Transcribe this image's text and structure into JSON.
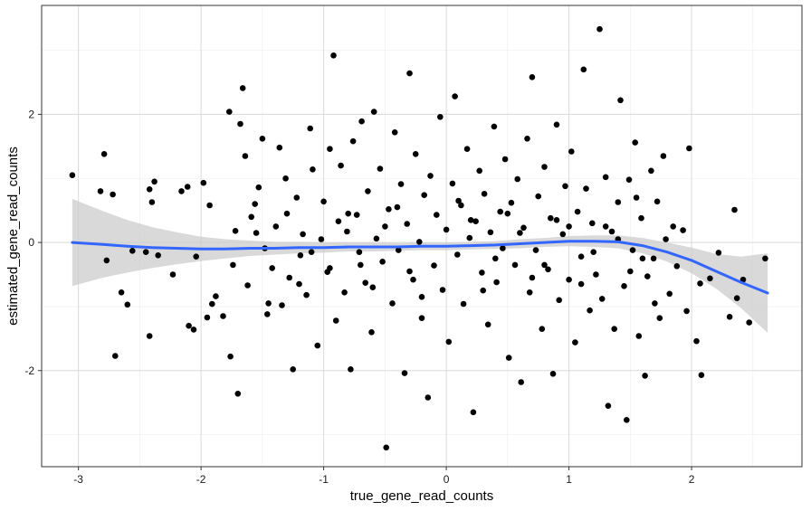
{
  "chart_data": {
    "type": "scatter",
    "title": "",
    "xlabel": "true_gene_read_counts",
    "ylabel": "estimated_gene_read_counts",
    "xlim": [
      -3.3,
      2.9
    ],
    "ylim": [
      -3.5,
      3.7
    ],
    "x_ticks": [
      -3,
      -2,
      -1,
      0,
      1,
      2
    ],
    "y_ticks": [
      -2,
      0,
      2
    ],
    "x_tick_labels": [
      "-3",
      "-2",
      "-1",
      "0",
      "1",
      "2"
    ],
    "y_tick_labels": [
      "-2",
      "0",
      "2"
    ],
    "grid": true,
    "point_color": "#000000",
    "smooth_color": "#3366FF",
    "ribbon_color": "#CCCCCC",
    "points": [
      [
        -3.05,
        1.05
      ],
      [
        -2.82,
        0.8
      ],
      [
        -2.79,
        1.38
      ],
      [
        -2.77,
        -0.28
      ],
      [
        -2.72,
        0.75
      ],
      [
        -2.7,
        -1.77
      ],
      [
        -2.65,
        -0.78
      ],
      [
        -2.6,
        -0.97
      ],
      [
        -2.56,
        -0.13
      ],
      [
        -2.42,
        0.83
      ],
      [
        -2.4,
        0.63
      ],
      [
        -2.42,
        -1.46
      ],
      [
        -2.38,
        0.95
      ],
      [
        -2.35,
        -0.2
      ],
      [
        -2.23,
        -0.5
      ],
      [
        -2.16,
        0.8
      ],
      [
        -2.11,
        0.87
      ],
      [
        -2.1,
        -1.3
      ],
      [
        -2.06,
        -1.36
      ],
      [
        -2.04,
        -0.22
      ],
      [
        -1.98,
        0.93
      ],
      [
        -1.95,
        -1.17
      ],
      [
        -1.93,
        0.58
      ],
      [
        -1.91,
        -0.96
      ],
      [
        -1.88,
        -0.84
      ],
      [
        -1.82,
        -1.15
      ],
      [
        -1.77,
        2.04
      ],
      [
        -1.76,
        -1.78
      ],
      [
        -1.74,
        -0.35
      ],
      [
        -1.72,
        0.18
      ],
      [
        -1.7,
        -2.36
      ],
      [
        -1.68,
        1.85
      ],
      [
        -1.66,
        2.41
      ],
      [
        -1.64,
        1.35
      ],
      [
        -1.62,
        -0.67
      ],
      [
        -1.59,
        0.4
      ],
      [
        -1.56,
        0.6
      ],
      [
        -1.53,
        0.86
      ],
      [
        -1.5,
        1.62
      ],
      [
        -1.48,
        -0.09
      ],
      [
        -1.46,
        -1.12
      ],
      [
        -1.42,
        -0.4
      ],
      [
        -1.39,
        0.25
      ],
      [
        -1.36,
        1.48
      ],
      [
        -1.34,
        -0.98
      ],
      [
        -1.31,
        1.0
      ],
      [
        -1.28,
        -0.55
      ],
      [
        -1.25,
        -1.98
      ],
      [
        -1.22,
        0.7
      ],
      [
        -1.19,
        -0.2
      ],
      [
        -1.17,
        0.13
      ],
      [
        -1.14,
        -0.82
      ],
      [
        -1.11,
        1.78
      ],
      [
        -1.09,
        1.14
      ],
      [
        -1.05,
        -1.61
      ],
      [
        -1.02,
        0.05
      ],
      [
        -1.0,
        0.64
      ],
      [
        -0.97,
        -0.46
      ],
      [
        -0.95,
        1.46
      ],
      [
        -0.92,
        2.92
      ],
      [
        -0.9,
        -1.22
      ],
      [
        -0.88,
        0.33
      ],
      [
        -0.86,
        1.2
      ],
      [
        -0.83,
        -0.78
      ],
      [
        -0.81,
        0.17
      ],
      [
        -0.78,
        -1.98
      ],
      [
        -0.76,
        1.58
      ],
      [
        -0.73,
        0.43
      ],
      [
        -0.71,
        -0.15
      ],
      [
        -0.69,
        1.89
      ],
      [
        -0.66,
        -0.63
      ],
      [
        -0.64,
        0.8
      ],
      [
        -0.61,
        -1.4
      ],
      [
        -0.59,
        2.04
      ],
      [
        -0.57,
        0.06
      ],
      [
        -0.54,
        1.15
      ],
      [
        -0.52,
        -0.3
      ],
      [
        -0.49,
        -3.2
      ],
      [
        -0.47,
        0.52
      ],
      [
        -0.44,
        -0.95
      ],
      [
        -0.42,
        1.72
      ],
      [
        -0.39,
        -0.12
      ],
      [
        -0.37,
        0.91
      ],
      [
        -0.34,
        -2.04
      ],
      [
        -0.32,
        0.29
      ],
      [
        -0.3,
        2.64
      ],
      [
        -0.27,
        -0.58
      ],
      [
        -0.25,
        1.38
      ],
      [
        -0.22,
        0.01
      ],
      [
        -0.2,
        -1.18
      ],
      [
        -0.18,
        0.74
      ],
      [
        -0.15,
        -2.42
      ],
      [
        -0.13,
        1.04
      ],
      [
        -0.1,
        -0.36
      ],
      [
        -0.08,
        0.43
      ],
      [
        -0.05,
        1.96
      ],
      [
        -0.03,
        -0.74
      ],
      [
        0.0,
        0.2
      ],
      [
        0.02,
        -1.55
      ],
      [
        0.05,
        0.92
      ],
      [
        0.07,
        2.28
      ],
      [
        0.09,
        -0.19
      ],
      [
        0.12,
        0.58
      ],
      [
        0.14,
        -0.96
      ],
      [
        0.17,
        1.46
      ],
      [
        0.19,
        0.07
      ],
      [
        0.22,
        -2.65
      ],
      [
        0.24,
        0.33
      ],
      [
        0.27,
        1.12
      ],
      [
        0.29,
        -0.47
      ],
      [
        0.31,
        0.76
      ],
      [
        0.34,
        -1.28
      ],
      [
        0.36,
        0.16
      ],
      [
        0.39,
        1.81
      ],
      [
        0.41,
        -0.62
      ],
      [
        0.44,
        0.48
      ],
      [
        0.46,
        -0.09
      ],
      [
        0.48,
        1.3
      ],
      [
        0.51,
        -1.8
      ],
      [
        0.53,
        0.62
      ],
      [
        0.56,
        -0.35
      ],
      [
        0.58,
        0.99
      ],
      [
        0.61,
        -2.18
      ],
      [
        0.63,
        0.23
      ],
      [
        0.66,
        1.62
      ],
      [
        0.68,
        -0.78
      ],
      [
        0.7,
        2.58
      ],
      [
        0.73,
        -0.12
      ],
      [
        0.75,
        0.72
      ],
      [
        0.78,
        -1.35
      ],
      [
        0.8,
        1.18
      ],
      [
        0.83,
        -0.42
      ],
      [
        0.85,
        0.38
      ],
      [
        0.87,
        -2.05
      ],
      [
        0.9,
        1.84
      ],
      [
        0.92,
        -0.9
      ],
      [
        0.95,
        0.13
      ],
      [
        0.97,
        0.88
      ],
      [
        1.0,
        -0.58
      ],
      [
        1.02,
        1.42
      ],
      [
        1.05,
        -1.56
      ],
      [
        1.07,
        0.48
      ],
      [
        1.1,
        -0.22
      ],
      [
        1.12,
        2.7
      ],
      [
        1.14,
        0.84
      ],
      [
        1.17,
        -1.06
      ],
      [
        1.19,
        0.3
      ],
      [
        1.22,
        -0.5
      ],
      [
        1.25,
        3.33
      ],
      [
        1.27,
        -0.88
      ],
      [
        1.3,
        1.02
      ],
      [
        1.32,
        -2.55
      ],
      [
        1.35,
        0.17
      ],
      [
        1.37,
        -1.35
      ],
      [
        1.4,
        0.63
      ],
      [
        1.42,
        2.22
      ],
      [
        1.45,
        -0.68
      ],
      [
        1.47,
        -2.77
      ],
      [
        1.49,
        0.98
      ],
      [
        1.52,
        -0.12
      ],
      [
        1.54,
        1.56
      ],
      [
        1.57,
        -1.46
      ],
      [
        1.59,
        0.38
      ],
      [
        1.62,
        -2.08
      ],
      [
        1.64,
        -0.53
      ],
      [
        1.67,
        1.12
      ],
      [
        1.69,
        -0.25
      ],
      [
        1.72,
        0.64
      ],
      [
        1.74,
        -1.18
      ],
      [
        1.77,
        1.35
      ],
      [
        1.79,
        0.05
      ],
      [
        1.82,
        -0.8
      ],
      [
        1.85,
        0.25
      ],
      [
        1.88,
        -0.37
      ],
      [
        1.93,
        0.19
      ],
      [
        1.96,
        -1.07
      ],
      [
        1.98,
        1.47
      ],
      [
        2.04,
        -1.54
      ],
      [
        2.07,
        -0.64
      ],
      [
        2.08,
        -2.07
      ],
      [
        2.15,
        -0.56
      ],
      [
        2.22,
        -0.16
      ],
      [
        2.31,
        -1.16
      ],
      [
        2.35,
        0.51
      ],
      [
        2.37,
        -0.87
      ],
      [
        2.42,
        -0.58
      ],
      [
        2.47,
        -1.25
      ],
      [
        2.6,
        -0.25
      ],
      [
        -2.45,
        -0.15
      ],
      [
        -1.1,
        -0.15
      ],
      [
        -0.95,
        -0.4
      ],
      [
        -0.8,
        0.45
      ],
      [
        -0.6,
        -0.7
      ],
      [
        -0.4,
        0.55
      ],
      [
        -0.2,
        -0.85
      ],
      [
        0.1,
        0.65
      ],
      [
        0.3,
        -0.75
      ],
      [
        0.5,
        0.45
      ],
      [
        0.7,
        -0.55
      ],
      [
        0.9,
        0.35
      ],
      [
        1.1,
        -0.65
      ],
      [
        1.3,
        0.25
      ],
      [
        1.5,
        -0.45
      ],
      [
        -1.3,
        0.45
      ],
      [
        -1.2,
        -0.65
      ],
      [
        -0.7,
        -0.35
      ],
      [
        -0.5,
        0.25
      ],
      [
        -0.3,
        -0.45
      ],
      [
        0.2,
        0.35
      ],
      [
        0.4,
        -0.25
      ],
      [
        0.6,
        0.15
      ],
      [
        0.8,
        -0.35
      ],
      [
        1.0,
        0.25
      ],
      [
        1.2,
        -0.15
      ],
      [
        1.4,
        0.05
      ],
      [
        1.6,
        -0.25
      ],
      [
        1.7,
        -0.95
      ],
      [
        1.55,
        0.7
      ],
      [
        -1.45,
        -0.95
      ],
      [
        -1.55,
        0.15
      ]
    ],
    "smooth": {
      "x": [
        -3.05,
        -2.8,
        -2.6,
        -2.4,
        -2.2,
        -2.0,
        -1.8,
        -1.6,
        -1.4,
        -1.2,
        -1.0,
        -0.8,
        -0.6,
        -0.4,
        -0.2,
        0.0,
        0.2,
        0.4,
        0.6,
        0.8,
        1.0,
        1.2,
        1.4,
        1.6,
        1.8,
        2.0,
        2.2,
        2.4,
        2.62
      ],
      "y": [
        0.0,
        -0.03,
        -0.06,
        -0.08,
        -0.09,
        -0.1,
        -0.1,
        -0.09,
        -0.09,
        -0.08,
        -0.08,
        -0.07,
        -0.07,
        -0.07,
        -0.06,
        -0.06,
        -0.05,
        -0.04,
        -0.02,
        0.0,
        0.02,
        0.02,
        0.01,
        -0.05,
        -0.15,
        -0.28,
        -0.45,
        -0.62,
        -0.79
      ],
      "se": [
        0.68,
        0.52,
        0.41,
        0.32,
        0.25,
        0.19,
        0.15,
        0.12,
        0.1,
        0.09,
        0.08,
        0.07,
        0.07,
        0.06,
        0.06,
        0.06,
        0.06,
        0.06,
        0.07,
        0.07,
        0.08,
        0.09,
        0.1,
        0.12,
        0.15,
        0.2,
        0.27,
        0.4,
        0.62
      ]
    }
  }
}
